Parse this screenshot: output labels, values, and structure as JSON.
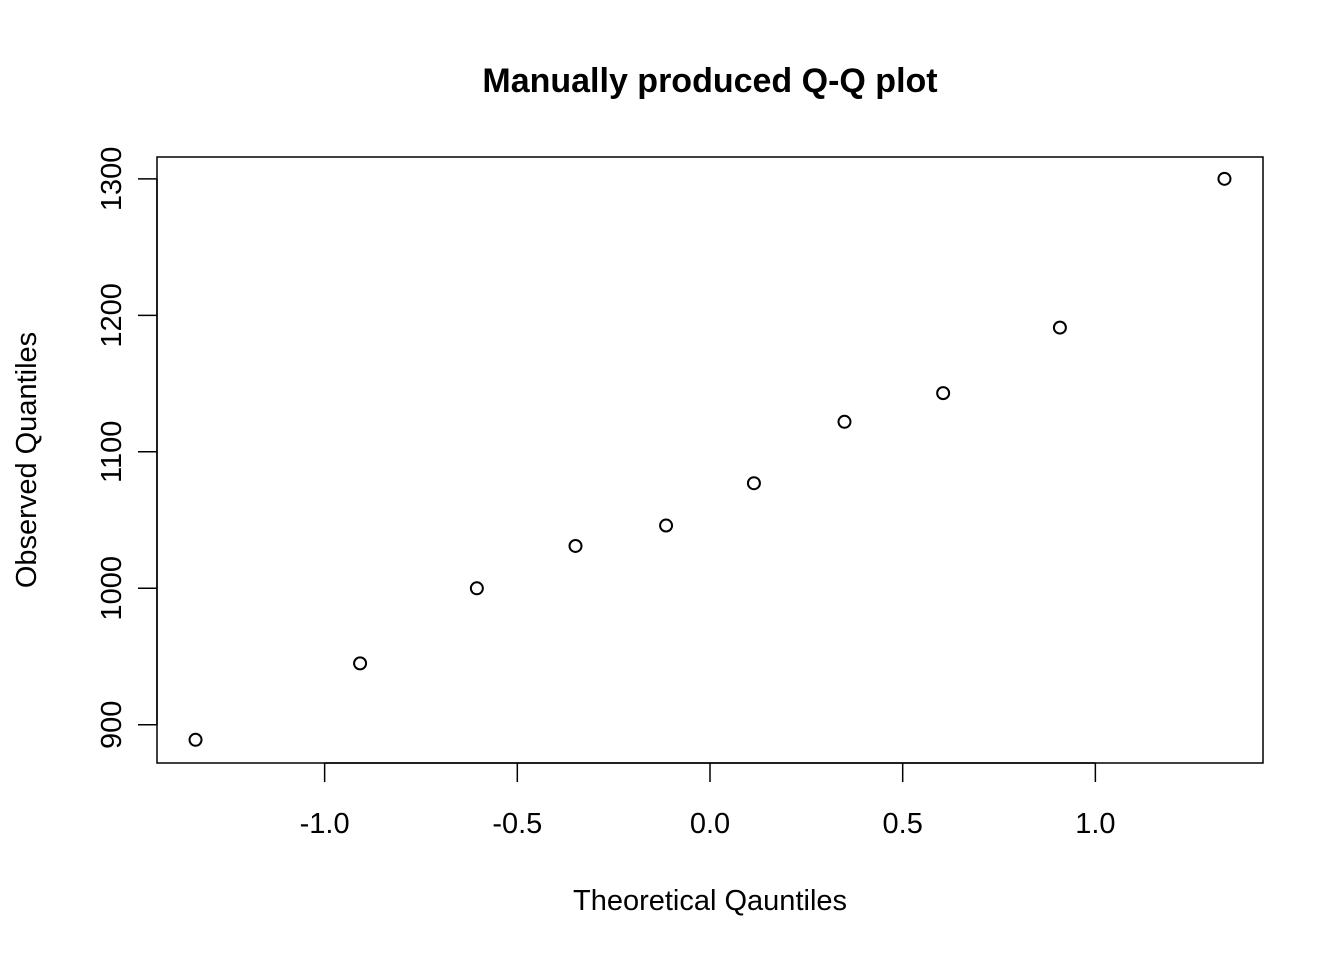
{
  "chart_data": {
    "type": "scatter",
    "title": "Manually produced Q-Q plot",
    "xlabel": "Theoretical Qauntiles",
    "ylabel": "Observed Quantiles",
    "xlim": [
      -1.435,
      1.435
    ],
    "ylim": [
      872,
      1316
    ],
    "xticks": [
      -1.0,
      -0.5,
      0.0,
      0.5,
      1.0
    ],
    "xtick_labels": [
      "-1.0",
      "-0.5",
      "0.0",
      "0.5",
      "1.0"
    ],
    "yticks": [
      900,
      1000,
      1100,
      1200,
      1300
    ],
    "ytick_labels": [
      "900",
      "1000",
      "1100",
      "1200",
      "1300"
    ],
    "grid": false,
    "marker": "open-circle",
    "x": [
      -1.335,
      -0.908,
      -0.605,
      -0.349,
      -0.114,
      0.114,
      0.349,
      0.605,
      0.908,
      1.335
    ],
    "y": [
      889,
      945,
      1000,
      1031,
      1046,
      1077,
      1122,
      1143,
      1191,
      1300
    ]
  }
}
